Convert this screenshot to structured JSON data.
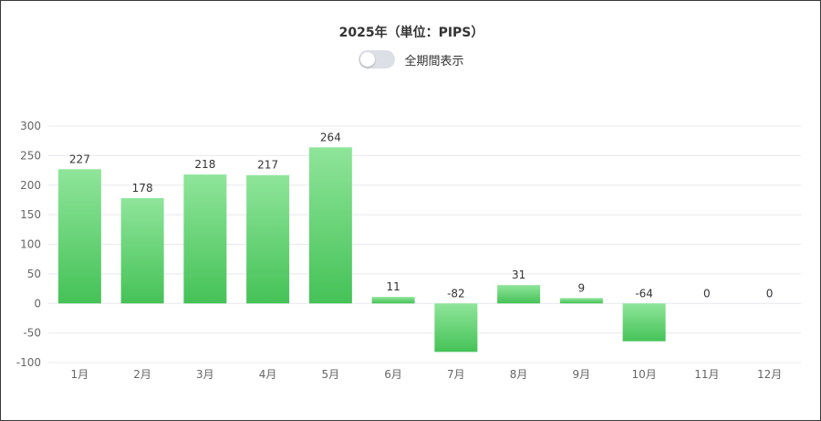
{
  "header": {
    "title": "2025年（単位：PIPS）",
    "toggle_label": "全期間表示",
    "toggle_on": false
  },
  "colors": {
    "bar_top": "#8fe59a",
    "bar_bottom": "#45c257",
    "grid": "#e8e8ee",
    "axis_text": "#666666",
    "label_text": "#333333"
  },
  "chart_data": {
    "type": "bar",
    "title": "2025年（単位：PIPS）",
    "categories": [
      "1月",
      "2月",
      "3月",
      "4月",
      "5月",
      "6月",
      "7月",
      "8月",
      "9月",
      "10月",
      "11月",
      "12月"
    ],
    "values": [
      227,
      178,
      218,
      217,
      264,
      11,
      -82,
      31,
      9,
      -64,
      0,
      0
    ],
    "data_labels": [
      "227",
      "178",
      "218",
      "217",
      "264",
      "11",
      "-82",
      "31",
      "9",
      "-64",
      "0",
      "0"
    ],
    "yticks": [
      -100,
      -50,
      0,
      50,
      100,
      150,
      200,
      250,
      300
    ],
    "ylim": [
      -100,
      300
    ],
    "grid": true,
    "legend": "none"
  }
}
